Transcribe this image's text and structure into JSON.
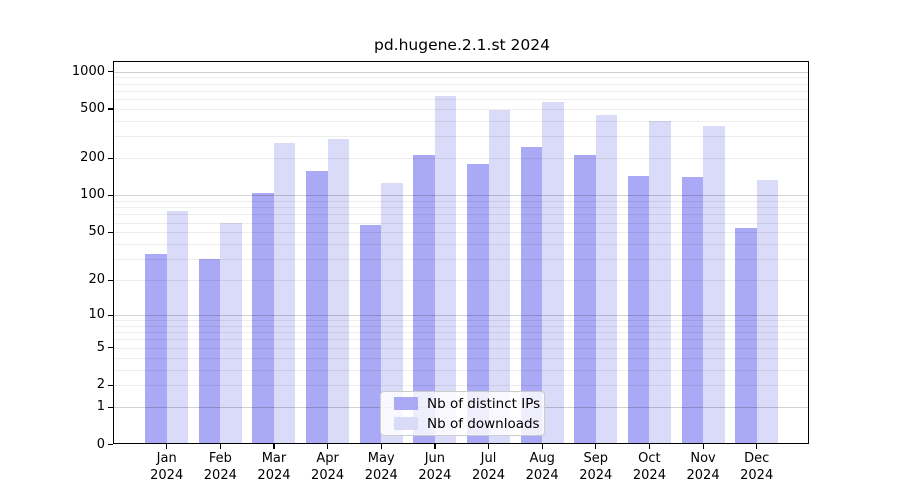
{
  "chart_data": {
    "type": "bar",
    "title": "pd.hugene.2.1.st 2024",
    "year_label": "2024",
    "categories": [
      "Jan",
      "Feb",
      "Mar",
      "Apr",
      "May",
      "Jun",
      "Jul",
      "Aug",
      "Sep",
      "Oct",
      "Nov",
      "Dec"
    ],
    "series": [
      {
        "name": "Nb of distinct IPs",
        "color": "#a9a9f5",
        "values": [
          33,
          30,
          104,
          158,
          57,
          212,
          180,
          245,
          212,
          144,
          140,
          54
        ]
      },
      {
        "name": "Nb of downloads",
        "color": "#dadaf9",
        "values": [
          74,
          59,
          266,
          286,
          126,
          633,
          486,
          568,
          449,
          396,
          363,
          133
        ]
      }
    ],
    "xlabel": "",
    "ylabel": "",
    "y_scale": "log10(value+1)",
    "y_ticks": [
      1000,
      500,
      200,
      100,
      50,
      20,
      10,
      5,
      2,
      1,
      0
    ],
    "ylim": [
      0,
      1000
    ],
    "grid": "major and minor horizontal gridlines drawn over bars",
    "legend_position": "inside lower-center"
  },
  "colors": {
    "background": "#ffffff",
    "axis": "#000000",
    "major_grid": "#d1d1d1",
    "minor_grid": "#ededed",
    "legend_border": "#cccccc"
  }
}
